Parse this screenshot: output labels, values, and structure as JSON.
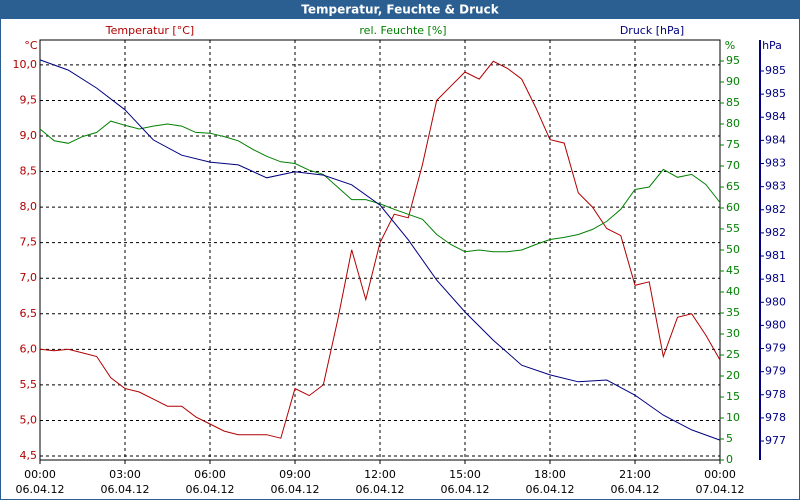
{
  "chart_data": {
    "type": "line",
    "title": "Temperatur, Feuchte & Druck",
    "y_unit": "°C",
    "y2_unit": "%",
    "y3_unit": "hPa",
    "xlim": [
      0,
      24
    ],
    "xticks": [
      {
        "value": 0,
        "label": "00:00",
        "date": "06.04.12"
      },
      {
        "value": 3,
        "label": "03:00",
        "date": "06.04.12"
      },
      {
        "value": 6,
        "label": "06:00",
        "date": "06.04.12"
      },
      {
        "value": 9,
        "label": "09:00",
        "date": "06.04.12"
      },
      {
        "value": 12,
        "label": "12:00",
        "date": "06.04.12"
      },
      {
        "value": 15,
        "label": "15:00",
        "date": "06.04.12"
      },
      {
        "value": 18,
        "label": "18:00",
        "date": "06.04.12"
      },
      {
        "value": 21,
        "label": "21:00",
        "date": "06.04.12"
      },
      {
        "value": 24,
        "label": "00:00",
        "date": "07.04.12"
      }
    ],
    "ylim": [
      4.444,
      10.35
    ],
    "yticks": [
      {
        "value": 4.5,
        "label": "4,5"
      },
      {
        "value": 5,
        "label": "5,0"
      },
      {
        "value": 5.5,
        "label": "5,5"
      },
      {
        "value": 6,
        "label": "6,0"
      },
      {
        "value": 6.5,
        "label": "6,5"
      },
      {
        "value": 7,
        "label": "7,0"
      },
      {
        "value": 7.5,
        "label": "7,5"
      },
      {
        "value": 8,
        "label": "8,0"
      },
      {
        "value": 8.5,
        "label": "8,5"
      },
      {
        "value": 9,
        "label": "9,0"
      },
      {
        "value": 9.5,
        "label": "9,5"
      },
      {
        "value": 10,
        "label": "10,0"
      }
    ],
    "y2lim": [
      0,
      100
    ],
    "y2ticks": [
      0,
      5,
      10,
      15,
      20,
      25,
      30,
      35,
      40,
      45,
      50,
      55,
      60,
      65,
      70,
      75,
      80,
      85,
      90,
      95
    ],
    "y3lim": [
      976.89,
      985.97
    ],
    "y3ticks": [
      {
        "value": 977.3,
        "label": "977"
      },
      {
        "value": 977.8,
        "label": "978"
      },
      {
        "value": 978.3,
        "label": "978"
      },
      {
        "value": 978.8,
        "label": "979"
      },
      {
        "value": 979.3,
        "label": "979"
      },
      {
        "value": 979.8,
        "label": "980"
      },
      {
        "value": 980.3,
        "label": "980"
      },
      {
        "value": 980.8,
        "label": "981"
      },
      {
        "value": 981.3,
        "label": "981"
      },
      {
        "value": 981.8,
        "label": "982"
      },
      {
        "value": 982.3,
        "label": "982"
      },
      {
        "value": 982.8,
        "label": "983"
      },
      {
        "value": 983.3,
        "label": "983"
      },
      {
        "value": 983.8,
        "label": "984"
      },
      {
        "value": 984.3,
        "label": "984"
      },
      {
        "value": 984.8,
        "label": "985"
      },
      {
        "value": 985.3,
        "label": "985"
      }
    ],
    "grid": true,
    "series": [
      {
        "name": "Temperatur [°C]",
        "color": "#b00000",
        "axis": "y",
        "x": [
          0,
          0.5,
          1,
          1.5,
          2,
          2.5,
          3,
          3.5,
          4,
          4.5,
          5,
          5.5,
          6,
          6.5,
          7,
          7.5,
          8,
          8.5,
          9,
          9.5,
          10,
          10.5,
          11,
          11.5,
          12,
          12.5,
          13,
          13.5,
          14,
          14.5,
          15,
          15.5,
          16,
          16.5,
          17,
          17.5,
          18,
          18.5,
          19,
          19.5,
          20,
          20.5,
          21,
          21.5,
          22,
          22.5,
          23,
          23.5,
          24
        ],
        "values": [
          6.0,
          5.98,
          6.0,
          5.95,
          5.9,
          5.6,
          5.45,
          5.4,
          5.3,
          5.2,
          5.2,
          5.05,
          4.95,
          4.85,
          4.8,
          4.8,
          4.8,
          4.75,
          5.45,
          5.35,
          5.5,
          6.4,
          7.4,
          6.7,
          7.5,
          7.9,
          7.85,
          8.6,
          9.5,
          9.7,
          9.9,
          9.8,
          10.05,
          9.95,
          9.8,
          9.4,
          8.95,
          8.9,
          8.2,
          8.0,
          7.7,
          7.6,
          6.9,
          6.95,
          5.9,
          6.45,
          6.5,
          6.2,
          5.85
        ]
      },
      {
        "name": "rel. Feuchte [%]",
        "color": "#008000",
        "axis": "y2",
        "x": [
          0,
          0.5,
          1,
          1.5,
          2,
          2.5,
          3,
          3.5,
          4,
          4.5,
          5,
          5.5,
          6,
          6.5,
          7,
          7.5,
          8,
          8.5,
          9,
          9.5,
          10,
          10.5,
          11,
          11.5,
          12,
          12.5,
          13,
          13.5,
          14,
          14.5,
          15,
          15.5,
          16,
          16.5,
          17,
          17.5,
          18,
          18.5,
          19,
          19.5,
          20,
          20.5,
          21,
          21.5,
          22,
          22.5,
          23,
          23.5,
          24
        ],
        "values": [
          78.8,
          76,
          75.4,
          77,
          78,
          80.7,
          79.7,
          78.8,
          79.5,
          80,
          79.5,
          78,
          77.8,
          77,
          76,
          74,
          72.3,
          71,
          70.6,
          69,
          68,
          65,
          62,
          62,
          61,
          59.7,
          58.5,
          57.3,
          53.7,
          51.3,
          49.6,
          50,
          49.6,
          49.6,
          50,
          51.3,
          52.5,
          53,
          53.7,
          54.9,
          56.8,
          59.7,
          64.4,
          65,
          69.2,
          67.3,
          68,
          65.6,
          61.3
        ]
      },
      {
        "name": "Druck [hPa]",
        "color": "#000080",
        "axis": "y3",
        "x": [
          0,
          1,
          2,
          3,
          4,
          5,
          6,
          7,
          8,
          9,
          10,
          11,
          12,
          13,
          14,
          15,
          16,
          17,
          18,
          19,
          20,
          21,
          22,
          23,
          24
        ],
        "values": [
          985.54,
          985.32,
          984.93,
          984.46,
          983.81,
          983.48,
          983.33,
          983.27,
          982.99,
          983.12,
          983.05,
          982.84,
          982.4,
          981.65,
          980.78,
          980.09,
          979.48,
          978.94,
          978.73,
          978.58,
          978.62,
          978.29,
          977.86,
          977.54,
          977.32
        ]
      }
    ]
  }
}
